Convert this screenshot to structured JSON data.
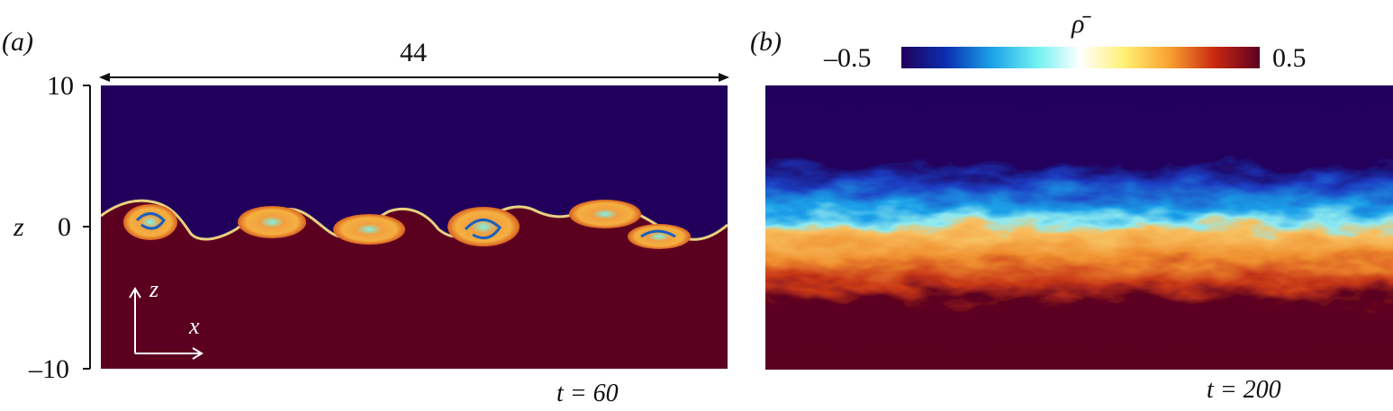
{
  "panel_a": {
    "label": "(a)",
    "width_annotation": "44",
    "y_axis": {
      "label": "z",
      "ticks": [
        "10",
        "0",
        "–10"
      ]
    },
    "axes_inset": {
      "z": "z",
      "x": "x"
    },
    "time_label": "t = 60"
  },
  "panel_b": {
    "label": "(b)",
    "time_label": "t = 200"
  },
  "colorbar": {
    "symbol": "ρ̄",
    "min_label": "–0.5",
    "max_label": "0.5",
    "colors": [
      "#21005c",
      "#0a2fb0",
      "#1ba0e8",
      "#6ff0f0",
      "#ffffff",
      "#fff070",
      "#f8a030",
      "#c82810",
      "#5c0020"
    ]
  },
  "colors": {
    "upper_fluid": "#21005c",
    "lower_fluid": "#5c0020"
  }
}
